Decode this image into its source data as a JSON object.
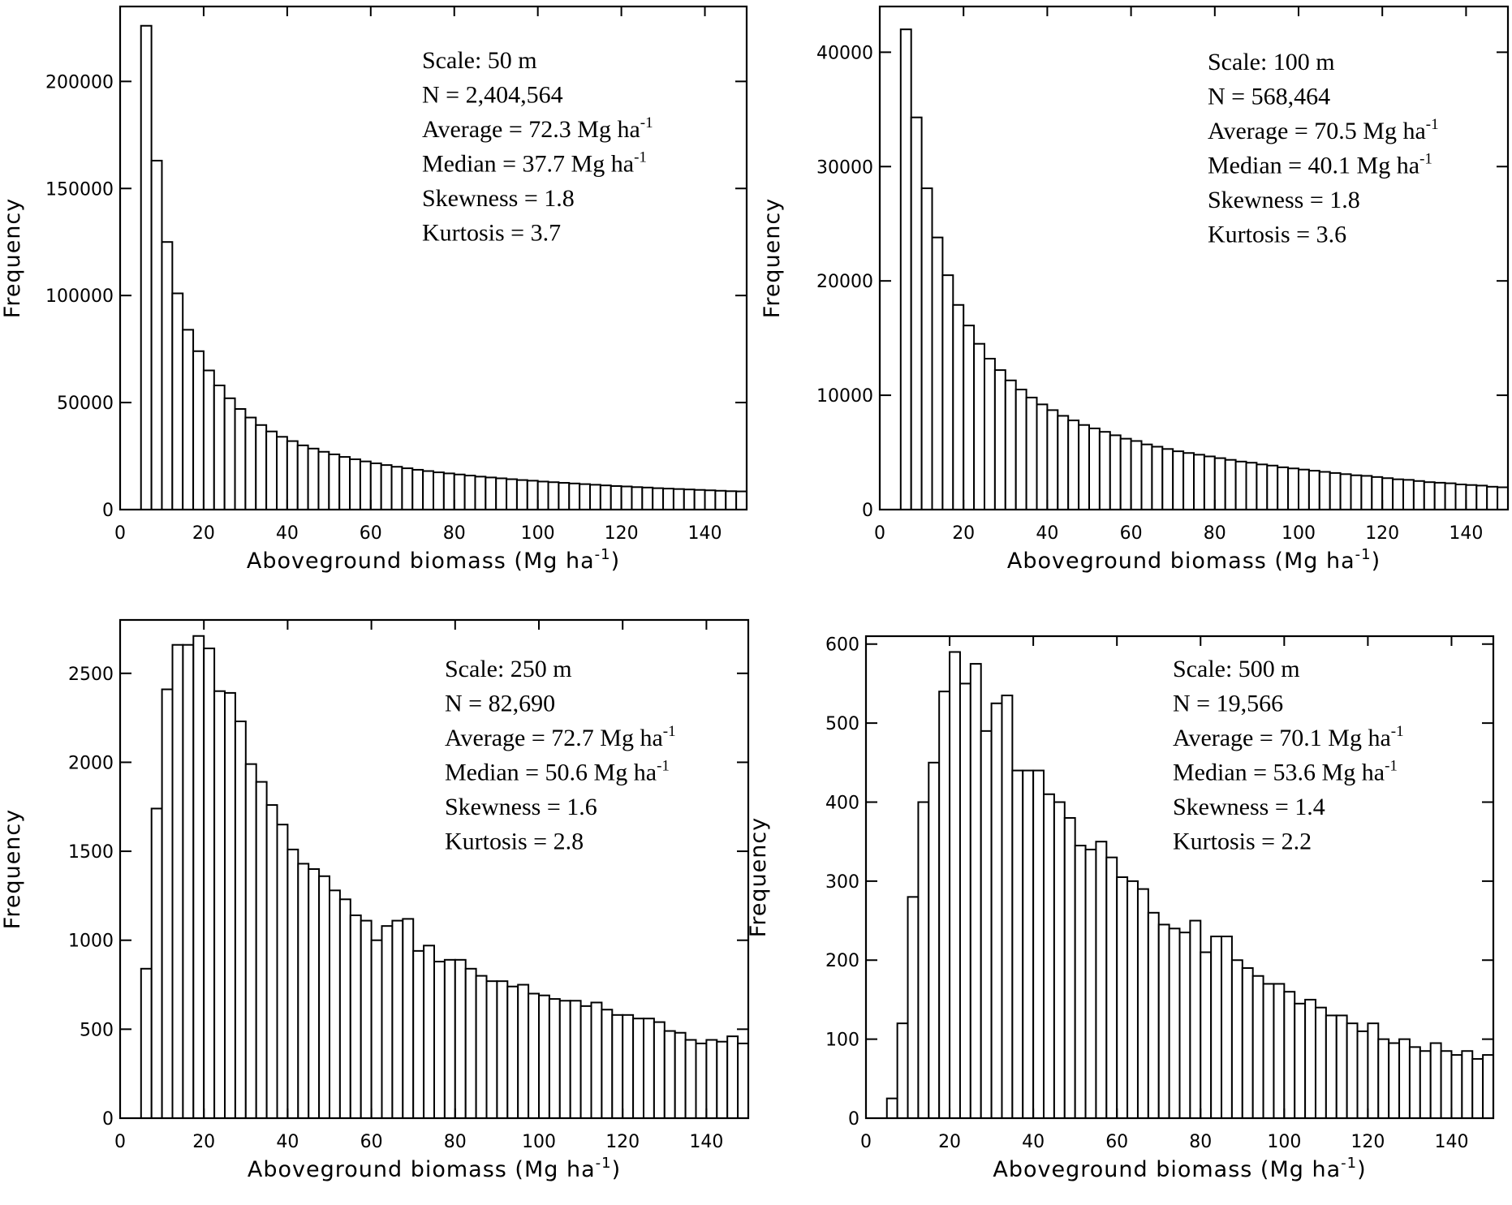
{
  "chart_data": [
    {
      "type": "bar",
      "panel": "top-left",
      "xlabel": "Aboveground biomass (Mg ha",
      "xlabel_sup": "-1",
      "xlabel_end": ")",
      "ylabel": "Frequency",
      "xlim": [
        0,
        150
      ],
      "ylim": [
        0,
        235000
      ],
      "xticks": [
        0,
        20,
        40,
        60,
        80,
        100,
        120,
        140
      ],
      "yticks": [
        0,
        50000,
        100000,
        150000,
        200000
      ],
      "bin_start": 5,
      "bin_width": 2.5,
      "values": [
        226000,
        163000,
        125000,
        101000,
        84000,
        74000,
        65000,
        58000,
        52000,
        47000,
        43000,
        39500,
        36500,
        34000,
        32000,
        30000,
        28500,
        27000,
        25800,
        24600,
        23500,
        22500,
        21600,
        20800,
        20000,
        19300,
        18600,
        18000,
        17400,
        16900,
        16400,
        15900,
        15400,
        15000,
        14600,
        14200,
        13800,
        13500,
        13100,
        12800,
        12500,
        12200,
        11900,
        11600,
        11300,
        11000,
        10800,
        10500,
        10300,
        10000,
        9800,
        9600,
        9400,
        9200,
        9000,
        8800,
        8600,
        8500
      ],
      "stats": [
        {
          "text": "Scale: 50 m"
        },
        {
          "text": "N = 2,404,564"
        },
        {
          "text": "Average =  72.3 Mg ha",
          "sup": "-1"
        },
        {
          "text": "Median = 37.7 Mg ha",
          "sup": "-1"
        },
        {
          "text": "Skewness = 1.8"
        },
        {
          "text": "Kurtosis = 3.7"
        }
      ]
    },
    {
      "type": "bar",
      "panel": "top-right",
      "xlabel": "Aboveground biomass (Mg ha",
      "xlabel_sup": "-1",
      "xlabel_end": ")",
      "ylabel": "Frequency",
      "xlim": [
        0,
        150
      ],
      "ylim": [
        0,
        44000
      ],
      "xticks": [
        0,
        20,
        40,
        60,
        80,
        100,
        120,
        140
      ],
      "yticks": [
        0,
        10000,
        20000,
        30000,
        40000
      ],
      "bin_start": 5,
      "bin_width": 2.5,
      "values": [
        42000,
        34300,
        28100,
        23800,
        20500,
        17900,
        16100,
        14500,
        13200,
        12200,
        11300,
        10500,
        9800,
        9200,
        8700,
        8200,
        7800,
        7400,
        7100,
        6800,
        6500,
        6200,
        6000,
        5700,
        5500,
        5300,
        5100,
        4950,
        4800,
        4650,
        4500,
        4350,
        4200,
        4100,
        3950,
        3850,
        3700,
        3600,
        3500,
        3400,
        3300,
        3200,
        3100,
        3000,
        2950,
        2850,
        2750,
        2650,
        2600,
        2500,
        2400,
        2350,
        2300,
        2200,
        2150,
        2100,
        2000,
        1950
      ],
      "stats": [
        {
          "text": "Scale: 100 m"
        },
        {
          "text": "N = 568,464"
        },
        {
          "text": "Average =  70.5 Mg ha",
          "sup": "-1"
        },
        {
          "text": "Median = 40.1 Mg ha",
          "sup": "-1"
        },
        {
          "text": "Skewness = 1.8"
        },
        {
          "text": "Kurtosis = 3.6"
        }
      ]
    },
    {
      "type": "bar",
      "panel": "bottom-left",
      "xlabel": "Aboveground biomass (Mg ha",
      "xlabel_sup": "-1",
      "xlabel_end": ")",
      "ylabel": "Frequency",
      "xlim": [
        0,
        150
      ],
      "ylim": [
        0,
        2800
      ],
      "xticks": [
        0,
        20,
        40,
        60,
        80,
        100,
        120,
        140
      ],
      "yticks": [
        0,
        500,
        1000,
        1500,
        2000,
        2500
      ],
      "bin_start": 5,
      "bin_width": 2.5,
      "values": [
        840,
        1740,
        2410,
        2660,
        2660,
        2710,
        2640,
        2400,
        2390,
        2230,
        1990,
        1890,
        1760,
        1650,
        1510,
        1430,
        1400,
        1360,
        1280,
        1230,
        1140,
        1110,
        1000,
        1080,
        1110,
        1120,
        940,
        970,
        880,
        890,
        890,
        840,
        800,
        770,
        770,
        740,
        750,
        700,
        690,
        670,
        660,
        660,
        630,
        650,
        610,
        580,
        580,
        560,
        560,
        540,
        490,
        480,
        440,
        420,
        440,
        430,
        460,
        420
      ],
      "stats": [
        {
          "text": "Scale: 250 m"
        },
        {
          "text": "N = 82,690"
        },
        {
          "text": "Average =  72.7 Mg ha",
          "sup": "-1"
        },
        {
          "text": "Median = 50.6 Mg ha",
          "sup": "-1"
        },
        {
          "text": "Skewness = 1.6"
        },
        {
          "text": "Kurtosis = 2.8"
        }
      ]
    },
    {
      "type": "bar",
      "panel": "bottom-right",
      "xlabel": "Aboveground biomass (Mg ha",
      "xlabel_sup": "-1",
      "xlabel_end": ")",
      "ylabel": "Frequency",
      "xlim": [
        0,
        150
      ],
      "ylim": [
        0,
        610
      ],
      "xticks": [
        0,
        20,
        40,
        60,
        80,
        100,
        120,
        140
      ],
      "yticks": [
        0,
        100,
        200,
        300,
        400,
        500,
        600
      ],
      "bin_start": 5,
      "bin_width": 2.5,
      "values": [
        25,
        120,
        280,
        400,
        450,
        540,
        590,
        550,
        575,
        490,
        525,
        535,
        440,
        440,
        440,
        410,
        400,
        380,
        345,
        340,
        350,
        330,
        305,
        300,
        290,
        260,
        245,
        240,
        235,
        250,
        210,
        230,
        230,
        200,
        190,
        180,
        170,
        170,
        160,
        145,
        150,
        140,
        130,
        130,
        120,
        110,
        120,
        100,
        95,
        100,
        90,
        85,
        95,
        85,
        80,
        85,
        75,
        80
      ],
      "stats": [
        {
          "text": "Scale: 500 m"
        },
        {
          "text": "N = 19,566"
        },
        {
          "text": "Average =  70.1 Mg ha",
          "sup": "-1"
        },
        {
          "text": "Median = 53.6 Mg ha",
          "sup": "-1"
        },
        {
          "text": "Skewness = 1.4"
        },
        {
          "text": "Kurtosis = 2.2"
        }
      ]
    }
  ]
}
